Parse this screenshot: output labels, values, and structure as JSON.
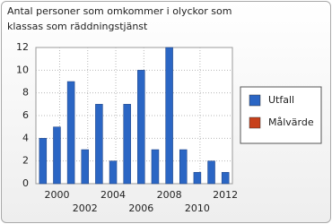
{
  "chart_data": {
    "type": "bar",
    "title_lines": [
      "Antal personer som omkommer i olyckor som",
      "klassas som räddningstjänst"
    ],
    "categories": [
      null,
      "2000",
      null,
      "2002",
      null,
      "2004",
      null,
      "2006",
      null,
      "2008",
      null,
      "2010",
      null,
      "2012"
    ],
    "series": [
      {
        "name": "Utfall",
        "color": "#2b66c4",
        "values": [
          4,
          5,
          9,
          3,
          7,
          2,
          7,
          10,
          3,
          12,
          3,
          1,
          2,
          1
        ]
      },
      {
        "name": "Målvärde",
        "color": "#c7401b",
        "values": [
          null,
          null,
          null,
          null,
          null,
          null,
          null,
          null,
          null,
          null,
          null,
          null,
          null,
          null
        ]
      }
    ],
    "ylim": [
      0,
      12
    ],
    "yticks": [
      0,
      2,
      4,
      6,
      8,
      10,
      12
    ],
    "grid": true,
    "legend": "right"
  }
}
